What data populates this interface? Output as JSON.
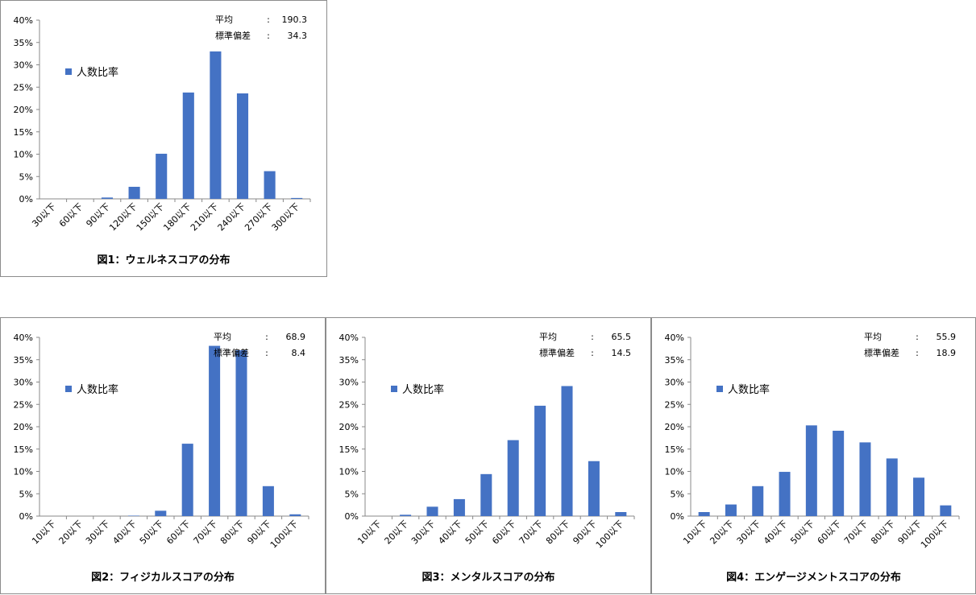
{
  "stat_labels": {
    "mean": "平均",
    "sd": "標準偏差",
    "colon": ":"
  },
  "legend_label": "人数比率",
  "bar_color": "#4472C4",
  "chart_data": [
    {
      "type": "bar",
      "title": "図1：ウェルネスコアの分布",
      "categories": [
        "30以下",
        "60以下",
        "90以下",
        "120以下",
        "150以下",
        "180以下",
        "210以下",
        "240以下",
        "270以下",
        "300以下"
      ],
      "series": [
        {
          "name": "人数比率",
          "values": [
            0,
            0,
            0.3,
            2.7,
            10.1,
            23.8,
            33.0,
            23.6,
            6.2,
            0.2
          ]
        }
      ],
      "y_ticks": [
        "0%",
        "5%",
        "10%",
        "15%",
        "20%",
        "25%",
        "30%",
        "35%",
        "40%"
      ],
      "ylim": [
        0,
        40
      ],
      "mean": "190.3",
      "sd": "34.3"
    },
    {
      "type": "bar",
      "title": "図2：フィジカルスコアの分布",
      "categories": [
        "10以下",
        "20以下",
        "30以下",
        "40以下",
        "50以下",
        "60以下",
        "70以下",
        "80以下",
        "90以下",
        "100以下"
      ],
      "series": [
        {
          "name": "人数比率",
          "values": [
            0,
            0,
            0,
            0.1,
            1.2,
            16.2,
            38.1,
            37.1,
            6.7,
            0.4
          ]
        }
      ],
      "y_ticks": [
        "0%",
        "5%",
        "10%",
        "15%",
        "20%",
        "25%",
        "30%",
        "35%",
        "40%"
      ],
      "ylim": [
        0,
        40
      ],
      "mean": "68.9",
      "sd": "8.4"
    },
    {
      "type": "bar",
      "title": "図3：メンタルスコアの分布",
      "categories": [
        "10以下",
        "20以下",
        "30以下",
        "40以下",
        "50以下",
        "60以下",
        "70以下",
        "80以下",
        "90以下",
        "100以下"
      ],
      "series": [
        {
          "name": "人数比率",
          "values": [
            0,
            0.3,
            2.1,
            3.8,
            9.4,
            17.0,
            24.7,
            29.1,
            12.3,
            0.9
          ]
        }
      ],
      "y_ticks": [
        "0%",
        "5%",
        "10%",
        "15%",
        "20%",
        "25%",
        "30%",
        "35%",
        "40%"
      ],
      "ylim": [
        0,
        40
      ],
      "mean": "65.5",
      "sd": "14.5"
    },
    {
      "type": "bar",
      "title": "図4：エンゲージメントスコアの分布",
      "categories": [
        "10以下",
        "20以下",
        "30以下",
        "40以下",
        "50以下",
        "60以下",
        "70以下",
        "80以下",
        "90以下",
        "100以下"
      ],
      "series": [
        {
          "name": "人数比率",
          "values": [
            0.9,
            2.6,
            6.7,
            9.9,
            20.3,
            19.1,
            16.5,
            12.9,
            8.6,
            2.4
          ]
        }
      ],
      "y_ticks": [
        "0%",
        "5%",
        "10%",
        "15%",
        "20%",
        "25%",
        "30%",
        "35%",
        "40%"
      ],
      "ylim": [
        0,
        40
      ],
      "mean": "55.9",
      "sd": "18.9"
    }
  ]
}
